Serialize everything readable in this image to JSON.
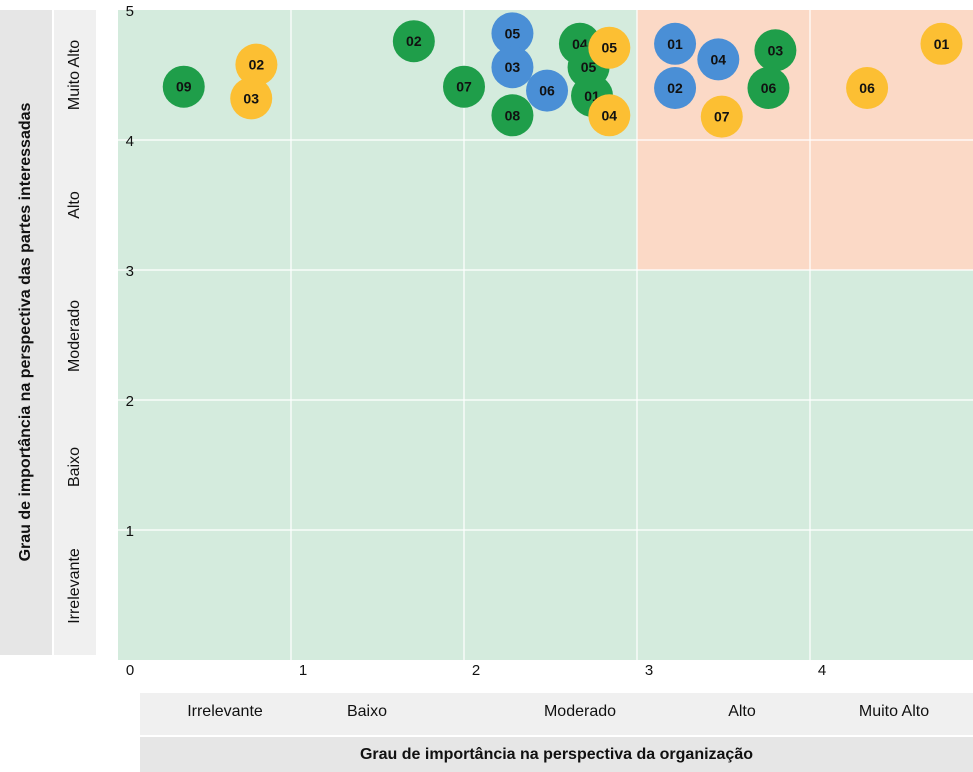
{
  "chart_data": {
    "type": "scatter",
    "xlabel": "Grau de importância na perspectiva da organização",
    "ylabel": "Grau de importância na perspectiva das partes interessadas",
    "xlim": [
      0,
      5
    ],
    "ylim": [
      0,
      5
    ],
    "x_ticks": [
      "0",
      "1",
      "2",
      "3",
      "4",
      "5"
    ],
    "y_ticks": [
      "1",
      "2",
      "3",
      "4",
      "5"
    ],
    "x_categories": [
      "Irrelevante",
      "Baixo",
      "Moderado",
      "Alto",
      "Muito Alto"
    ],
    "y_categories": [
      "Irrelevante",
      "Baixo",
      "Moderado",
      "Alto",
      "Muito Alto"
    ],
    "grid": true,
    "regions": [
      {
        "x": [
          0,
          5
        ],
        "y": [
          0,
          5
        ],
        "color": "#d4ebdd"
      },
      {
        "x": [
          3,
          5
        ],
        "y": [
          3,
          5
        ],
        "color": "#fbd9c6"
      }
    ],
    "series": [
      {
        "color": "#1f9e4a",
        "points": [
          {
            "label": "09",
            "x": 0.38,
            "y": 4.41
          },
          {
            "label": "02",
            "x": 1.71,
            "y": 4.76
          },
          {
            "label": "07",
            "x": 2.0,
            "y": 4.41
          },
          {
            "label": "08",
            "x": 2.28,
            "y": 4.19
          },
          {
            "label": "04",
            "x": 2.67,
            "y": 4.74
          },
          {
            "label": "05",
            "x": 2.72,
            "y": 4.56
          },
          {
            "label": "01",
            "x": 2.74,
            "y": 4.34
          },
          {
            "label": "03",
            "x": 3.8,
            "y": 4.69
          },
          {
            "label": "06",
            "x": 3.76,
            "y": 4.4
          }
        ]
      },
      {
        "color": "#4a8fd6",
        "points": [
          {
            "label": "05",
            "x": 2.28,
            "y": 4.82
          },
          {
            "label": "03",
            "x": 2.28,
            "y": 4.56
          },
          {
            "label": "06",
            "x": 2.48,
            "y": 4.38
          },
          {
            "label": "01",
            "x": 3.22,
            "y": 4.74
          },
          {
            "label": "04",
            "x": 3.47,
            "y": 4.62
          },
          {
            "label": "02",
            "x": 3.22,
            "y": 4.4
          }
        ]
      },
      {
        "color": "#fcbf33",
        "points": [
          {
            "label": "02",
            "x": 0.8,
            "y": 4.58
          },
          {
            "label": "03",
            "x": 0.77,
            "y": 4.32
          },
          {
            "label": "05",
            "x": 2.84,
            "y": 4.71
          },
          {
            "label": "04",
            "x": 2.84,
            "y": 4.19
          },
          {
            "label": "07",
            "x": 3.49,
            "y": 4.18
          },
          {
            "label": "06",
            "x": 4.33,
            "y": 4.4
          },
          {
            "label": "01",
            "x": 4.76,
            "y": 4.74
          }
        ]
      }
    ]
  }
}
